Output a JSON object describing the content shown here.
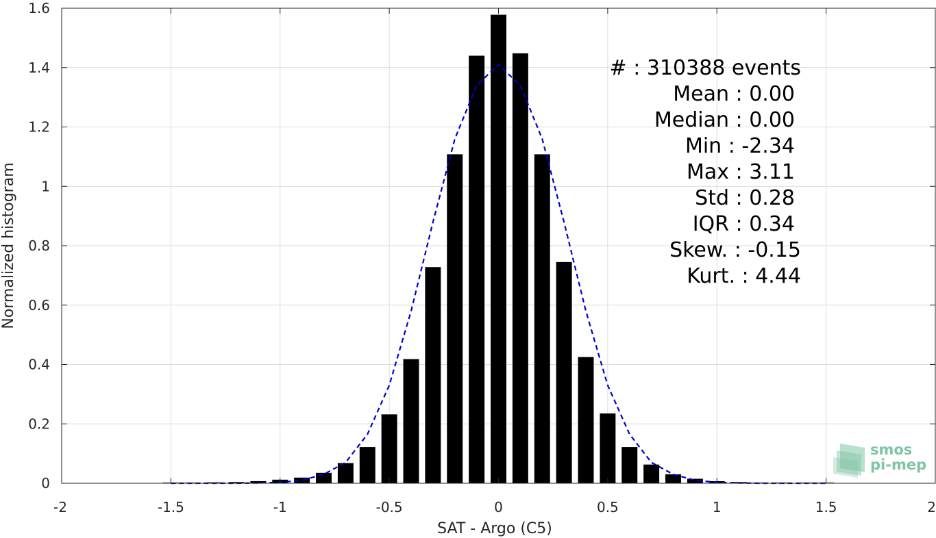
{
  "chart_data": {
    "type": "bar",
    "xlabel": "SAT - Argo (C5)",
    "ylabel": "Normalized histogram",
    "xlim": [
      -2,
      2
    ],
    "ylim": [
      0,
      1.6
    ],
    "xticks": [
      "-2",
      "-1.5",
      "-1",
      "-0.5",
      "0",
      "0.5",
      "1",
      "1.5",
      "2"
    ],
    "yticks": [
      "0",
      "0.2",
      "0.4",
      "0.6",
      "0.8",
      "1",
      "1.2",
      "1.4",
      "1.6"
    ],
    "grid": true,
    "bar_color": "#000000",
    "fit_color": "#0000cc",
    "bin_width": 0.1,
    "x": [
      -1.5,
      -1.4,
      -1.3,
      -1.2,
      -1.1,
      -1.0,
      -0.9,
      -0.8,
      -0.7,
      -0.6,
      -0.5,
      -0.4,
      -0.3,
      -0.2,
      -0.1,
      0.0,
      0.1,
      0.2,
      0.3,
      0.4,
      0.5,
      0.6,
      0.7,
      0.8,
      0.9,
      1.0,
      1.1,
      1.2,
      1.3,
      1.4,
      1.5
    ],
    "values": [
      0.002,
      0.002,
      0.003,
      0.004,
      0.007,
      0.012,
      0.019,
      0.035,
      0.068,
      0.122,
      0.232,
      0.418,
      0.728,
      1.108,
      1.44,
      1.578,
      1.448,
      1.108,
      0.745,
      0.425,
      0.235,
      0.122,
      0.063,
      0.03,
      0.015,
      0.007,
      0.004,
      0.002,
      0.002,
      0.001,
      0.001
    ],
    "fit": {
      "style": "dashed",
      "x": [
        -1.5,
        -1.4,
        -1.3,
        -1.2,
        -1.1,
        -1.0,
        -0.9,
        -0.8,
        -0.7,
        -0.6,
        -0.5,
        -0.4,
        -0.3,
        -0.2,
        -0.1,
        0.0,
        0.1,
        0.2,
        0.3,
        0.4,
        0.5,
        0.6,
        0.7,
        0.8,
        0.9,
        1.0,
        1.1,
        1.2,
        1.3,
        1.4,
        1.5
      ],
      "y": [
        0.0,
        0.0,
        0.0,
        0.0,
        0.001,
        0.003,
        0.01,
        0.03,
        0.07,
        0.165,
        0.33,
        0.58,
        0.88,
        1.16,
        1.34,
        1.41,
        1.34,
        1.16,
        0.88,
        0.58,
        0.33,
        0.165,
        0.07,
        0.03,
        0.01,
        0.003,
        0.001,
        0.0,
        0.0,
        0.0,
        0.0
      ]
    }
  },
  "stats": {
    "count_line": "#  : 310388 events",
    "lines": [
      "Mean : 0.00",
      "Median : 0.00",
      "Min : -2.34",
      "Max : 3.11",
      "Std : 0.28",
      "IQR : 0.34",
      "Skew. : -0.15",
      "Kurt. : 4.44"
    ]
  },
  "logo": {
    "line1": "smos",
    "line2": "pi-mep",
    "color": "#7fc4a4"
  }
}
